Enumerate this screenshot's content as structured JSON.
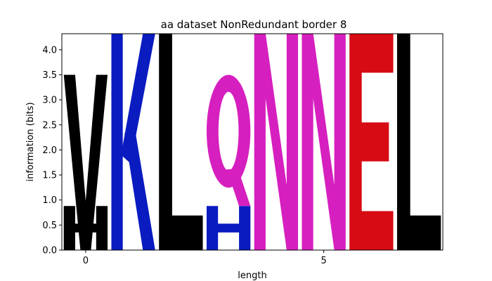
{
  "chart_data": {
    "type": "logo",
    "title": "aa dataset NonRedundant border 8",
    "xlabel": "length",
    "ylabel": "information (bits)",
    "xlim": [
      -0.5,
      7.5
    ],
    "ylim": [
      0,
      4.32
    ],
    "xticks": [
      0,
      5
    ],
    "yticks": [
      0.0,
      0.5,
      1.0,
      1.5,
      2.0,
      2.5,
      3.0,
      3.5,
      4.0
    ],
    "grid": false,
    "colors": {
      "black": "#000000",
      "blue": "#0a1bc0",
      "magenta": "#d61fbf",
      "red": "#d60b14"
    },
    "positions": [
      {
        "x": 0,
        "letters": [
          {
            "aa": "H",
            "bottom": 0.0,
            "height": 0.88,
            "color": "#000000"
          },
          {
            "aa": "V",
            "bottom": 0.0,
            "height": 3.5,
            "color": "#000000"
          }
        ]
      },
      {
        "x": 1,
        "letters": [
          {
            "aa": "K",
            "bottom": 0.0,
            "height": 4.32,
            "color": "#0a1bc0"
          }
        ]
      },
      {
        "x": 2,
        "letters": [
          {
            "aa": "L",
            "bottom": 0.0,
            "height": 4.32,
            "color": "#000000"
          }
        ]
      },
      {
        "x": 3,
        "letters": [
          {
            "aa": "H",
            "bottom": 0.0,
            "height": 0.88,
            "color": "#0a1bc0"
          },
          {
            "aa": "Q",
            "bottom": 0.88,
            "height": 2.62,
            "color": "#d61fbf"
          }
        ]
      },
      {
        "x": 4,
        "letters": [
          {
            "aa": "N",
            "bottom": 0.0,
            "height": 4.32,
            "color": "#d61fbf"
          }
        ]
      },
      {
        "x": 5,
        "letters": [
          {
            "aa": "N",
            "bottom": 0.0,
            "height": 4.32,
            "color": "#d61fbf"
          }
        ]
      },
      {
        "x": 6,
        "letters": [
          {
            "aa": "E",
            "bottom": 0.0,
            "height": 4.32,
            "color": "#d60b14"
          }
        ]
      },
      {
        "x": 7,
        "letters": [
          {
            "aa": "L",
            "bottom": 0.0,
            "height": 4.32,
            "color": "#000000"
          }
        ]
      }
    ]
  }
}
